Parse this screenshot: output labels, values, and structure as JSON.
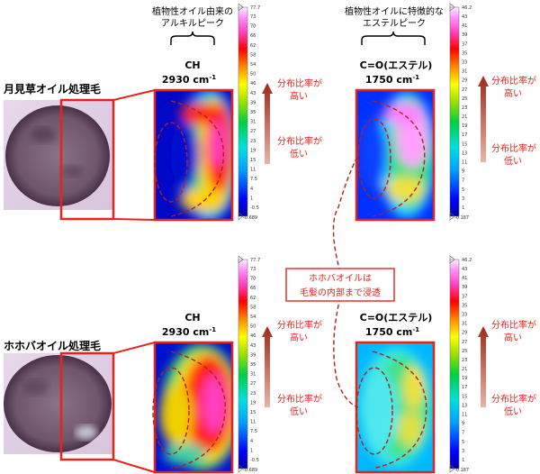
{
  "top_left_annotation": [
    "植物性オイル由来の",
    "アルキルピーク"
  ],
  "top_right_annotation": [
    "植物性オイルに特徴的な",
    "エステルピーク"
  ],
  "sample_labels": {
    "top": "月見草オイル処理毛",
    "bottom": "ホホバオイル処理毛"
  },
  "peaks": {
    "ch": {
      "name": "CH",
      "wavenumber": "2930 cm",
      "unit_exp": "-1"
    },
    "ester": {
      "name": "C=O(エステル)",
      "wavenumber": "1750 cm",
      "unit_exp": "-1"
    }
  },
  "arrow_labels": {
    "high": [
      "分布比率が",
      "高い"
    ],
    "low": [
      "分布比率が",
      "低い"
    ]
  },
  "callout": [
    "ホホバオイルは",
    "毛髪の内部まで浸透"
  ],
  "colorbars": {
    "ch": {
      "max": "77.7",
      "min": "-0.689",
      "ticks": [
        "73",
        "70",
        "66",
        "62",
        "58",
        "54",
        "50",
        "46",
        "43",
        "39",
        "35",
        "31",
        "27",
        "23",
        "19",
        "15",
        "11",
        "7.5",
        "4",
        "1",
        "-0.5"
      ]
    },
    "ester": {
      "max": "46.2",
      "min": "-0.187",
      "ticks": [
        "43",
        "41",
        "39",
        "37",
        "35",
        "33",
        "31",
        "29",
        "27",
        "25",
        "23",
        "21",
        "19",
        "17",
        "15",
        "13",
        "11",
        "9",
        "7",
        "5",
        "3",
        "1"
      ]
    }
  },
  "colors": {
    "accent_red": "#e8221c",
    "arrow_dark_red": "#9c2a1c",
    "dashed_line": "#b0231a"
  }
}
